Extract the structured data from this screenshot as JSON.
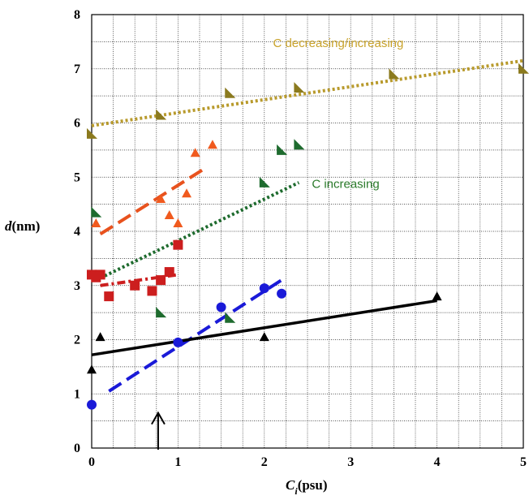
{
  "chart_data": {
    "type": "scatter",
    "xlabel": {
      "symbol": "C",
      "subscript": "i",
      "unit": "(psu)"
    },
    "ylabel": {
      "symbol": "d",
      "unit": "(nm)"
    },
    "xlim": [
      0,
      5
    ],
    "ylim": [
      0,
      8
    ],
    "xticks": [
      0,
      1,
      2,
      3,
      4,
      5
    ],
    "yticks": [
      0,
      1,
      2,
      3,
      4,
      5,
      6,
      7,
      8
    ],
    "grid": true,
    "annotations": [
      {
        "text": "C decreasing/increasing",
        "x": 2.1,
        "y": 7.4,
        "color": "#c8a22a"
      },
      {
        "text": "C increasing",
        "x": 2.55,
        "y": 4.8,
        "color": "#2a7a2a"
      }
    ],
    "arrow": {
      "x": 0.77,
      "y_from": 0.0,
      "y_to": 0.65
    },
    "series": [
      {
        "marker": "triangle-flag",
        "color": "#8b7a1e",
        "points": [
          [
            0.0,
            5.8
          ],
          [
            0.8,
            6.15
          ],
          [
            1.6,
            6.55
          ],
          [
            2.4,
            6.65
          ],
          [
            3.5,
            6.9
          ],
          [
            5.0,
            7.0
          ]
        ]
      },
      {
        "marker": "triangle-flag",
        "color": "#1e6b2e",
        "points": [
          [
            0.05,
            4.35
          ],
          [
            0.8,
            2.5
          ],
          [
            1.6,
            2.4
          ],
          [
            2.0,
            4.9
          ],
          [
            2.2,
            5.5
          ],
          [
            2.4,
            5.6
          ]
        ]
      },
      {
        "marker": "triangle",
        "color": "#f05a1e",
        "points": [
          [
            0.05,
            4.15
          ],
          [
            0.8,
            4.6
          ],
          [
            0.9,
            4.3
          ],
          [
            1.0,
            4.15
          ],
          [
            1.1,
            4.7
          ],
          [
            1.2,
            5.45
          ],
          [
            1.4,
            5.6
          ]
        ]
      },
      {
        "marker": "square",
        "color": "#cc1e1e",
        "points": [
          [
            0.0,
            3.2
          ],
          [
            0.05,
            3.15
          ],
          [
            0.1,
            3.2
          ],
          [
            0.2,
            2.8
          ],
          [
            0.5,
            3.0
          ],
          [
            0.7,
            2.9
          ],
          [
            0.8,
            3.1
          ],
          [
            0.9,
            3.25
          ],
          [
            1.0,
            3.75
          ]
        ]
      },
      {
        "marker": "circle",
        "color": "#1a1ad8",
        "points": [
          [
            0.0,
            0.8
          ],
          [
            1.0,
            1.95
          ],
          [
            1.5,
            2.6
          ],
          [
            2.0,
            2.95
          ],
          [
            2.2,
            2.85
          ]
        ]
      },
      {
        "marker": "triangle",
        "color": "#000000",
        "points": [
          [
            0.0,
            1.45
          ],
          [
            0.1,
            2.05
          ],
          [
            2.0,
            2.05
          ],
          [
            4.0,
            2.8
          ]
        ]
      }
    ],
    "fit_lines": [
      {
        "color": "#b89a2c",
        "style": "dotted",
        "from": [
          0.0,
          5.95
        ],
        "to": [
          5.0,
          7.15
        ]
      },
      {
        "color": "#e8521e",
        "style": "dashed",
        "from": [
          0.1,
          3.95
        ],
        "to": [
          1.3,
          5.15
        ]
      },
      {
        "color": "#1e6b2e",
        "style": "dotted",
        "from": [
          0.05,
          3.1
        ],
        "to": [
          2.4,
          4.9
        ]
      },
      {
        "color": "#cc1e1e",
        "style": "dashdot",
        "from": [
          0.1,
          3.0
        ],
        "to": [
          1.0,
          3.2
        ]
      },
      {
        "color": "#1a1ad8",
        "style": "dashed",
        "from": [
          0.2,
          1.05
        ],
        "to": [
          2.2,
          3.1
        ]
      },
      {
        "color": "#000000",
        "style": "solid",
        "from": [
          0.0,
          1.72
        ],
        "to": [
          4.0,
          2.72
        ]
      }
    ]
  }
}
